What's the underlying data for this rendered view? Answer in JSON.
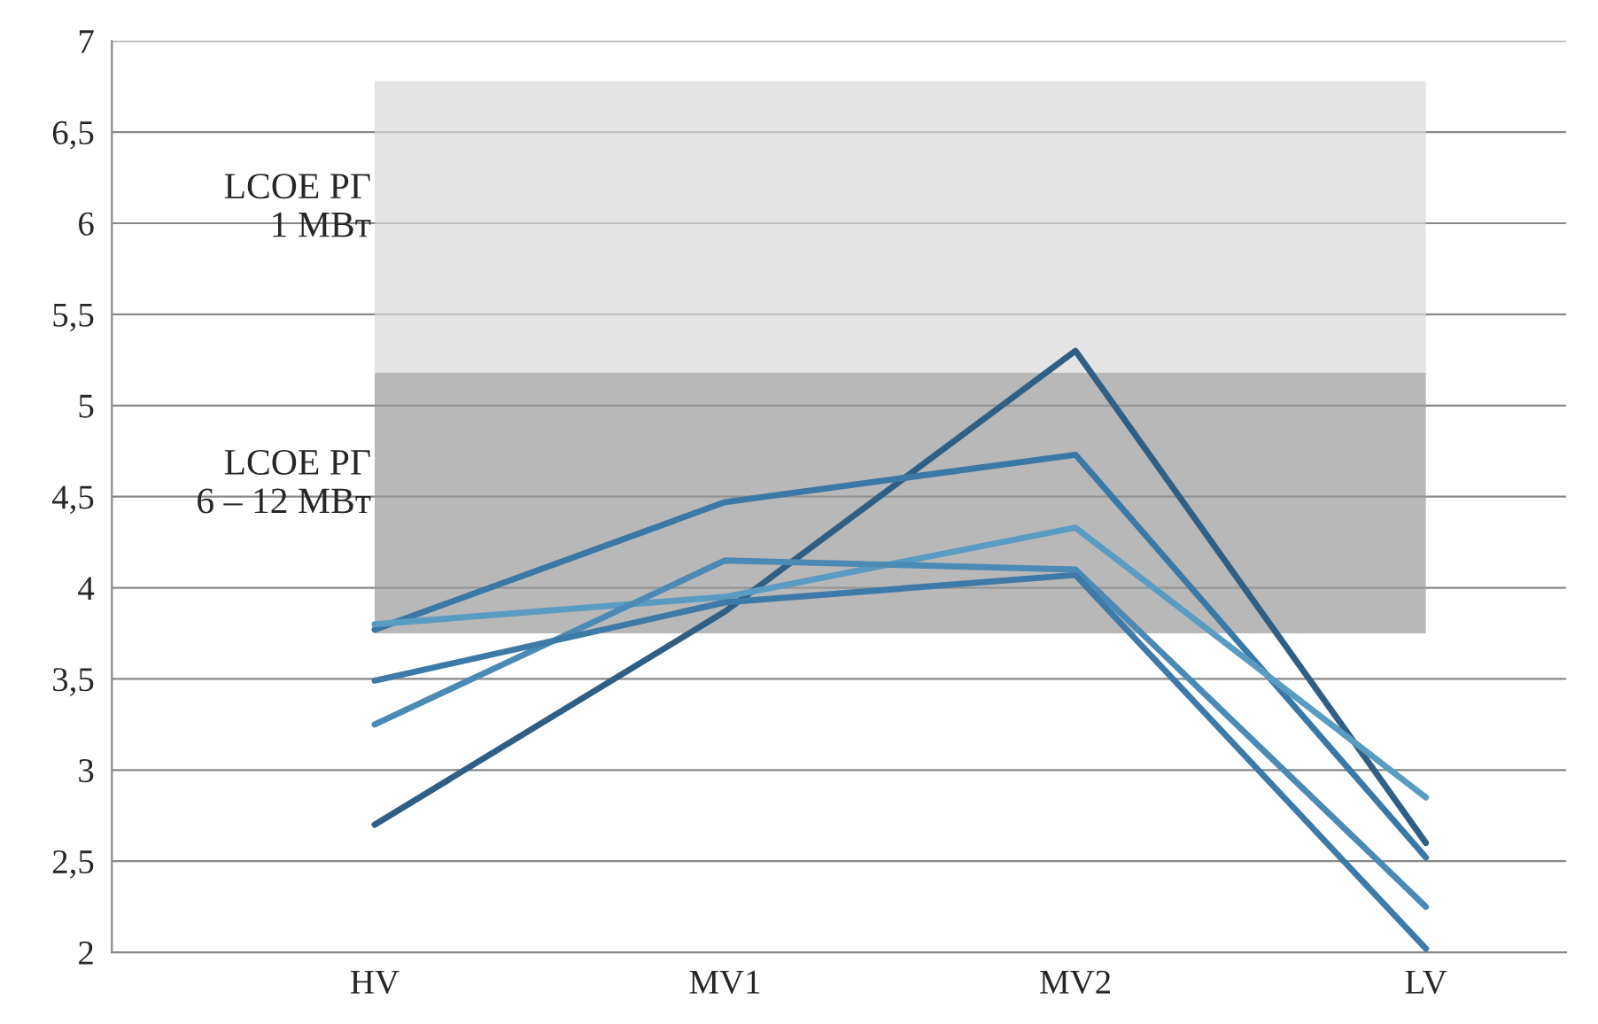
{
  "chart_data": {
    "type": "line",
    "categories": [
      "HV",
      "MV1",
      "MV2",
      "LV"
    ],
    "series": [
      {
        "color": "#2f5f85",
        "values": [
          2.7,
          3.87,
          5.3,
          2.6
        ]
      },
      {
        "color": "#3a78a5",
        "values": [
          3.77,
          4.47,
          4.73,
          2.52
        ]
      },
      {
        "color": "#5a9bc2",
        "values": [
          3.8,
          3.95,
          4.33,
          2.85
        ]
      },
      {
        "color": "#4a8ab5",
        "values": [
          3.25,
          4.15,
          4.1,
          2.25
        ]
      },
      {
        "color": "#3d7aa8",
        "values": [
          3.49,
          3.92,
          4.07,
          2.02
        ]
      }
    ],
    "ylim": [
      2,
      7
    ],
    "yticks": [
      2,
      {
        "value": 2.5,
        "label": "2,5"
      },
      3,
      {
        "value": 3.5,
        "label": "3,5"
      },
      4,
      {
        "value": 4.5,
        "label": "4,5"
      },
      5,
      {
        "value": 5.5,
        "label": "5,5"
      },
      6,
      {
        "value": 6.5,
        "label": "6,5"
      },
      7
    ],
    "bands": [
      {
        "axis": "y",
        "from": 5.18,
        "to": 6.78,
        "label": "LCOE РГ\n1 МВт",
        "color": "#d9d9d9"
      },
      {
        "axis": "y",
        "from": 3.75,
        "to": 5.18,
        "label": "LCOE РГ\n6 – 12 МВт",
        "color": "#9a9a9a"
      }
    ],
    "grid": "y",
    "legend": false,
    "marker": "none",
    "line_style": "solid"
  }
}
